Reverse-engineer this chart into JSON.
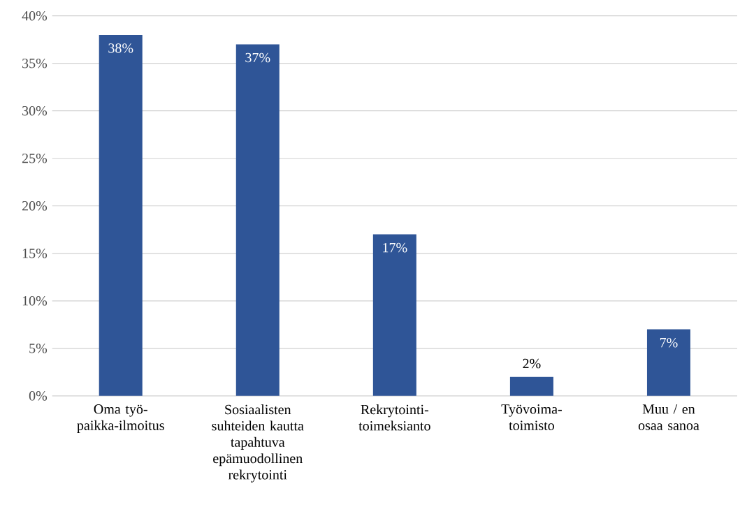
{
  "chart_data": {
    "type": "bar",
    "categories": [
      "Oma työ-paikka-ilmoitus",
      "Sosiaalisten suhteiden kautta tapahtuva epämuodollinen rekrytointi",
      "Rekrytointi-toimeksianto",
      "Työvoima-toimisto",
      "Muu / en osaa sanoa"
    ],
    "values": [
      38,
      37,
      17,
      2,
      7
    ],
    "color": "#2f5597",
    "ylim": [
      0,
      40
    ],
    "yticks": [
      {
        "value": 0,
        "label": "0%"
      },
      {
        "value": 5,
        "label": "5%"
      },
      {
        "value": 10,
        "label": "10%"
      },
      {
        "value": 15,
        "label": "15%"
      },
      {
        "value": 20,
        "label": "20%"
      },
      {
        "value": 25,
        "label": "25%"
      },
      {
        "value": 30,
        "label": "30%"
      },
      {
        "value": 35,
        "label": "35%"
      },
      {
        "value": 40,
        "label": "40%"
      }
    ],
    "value_labels": [
      "38%",
      "37%",
      "17%",
      "2%",
      "7%"
    ],
    "grid": "y"
  }
}
